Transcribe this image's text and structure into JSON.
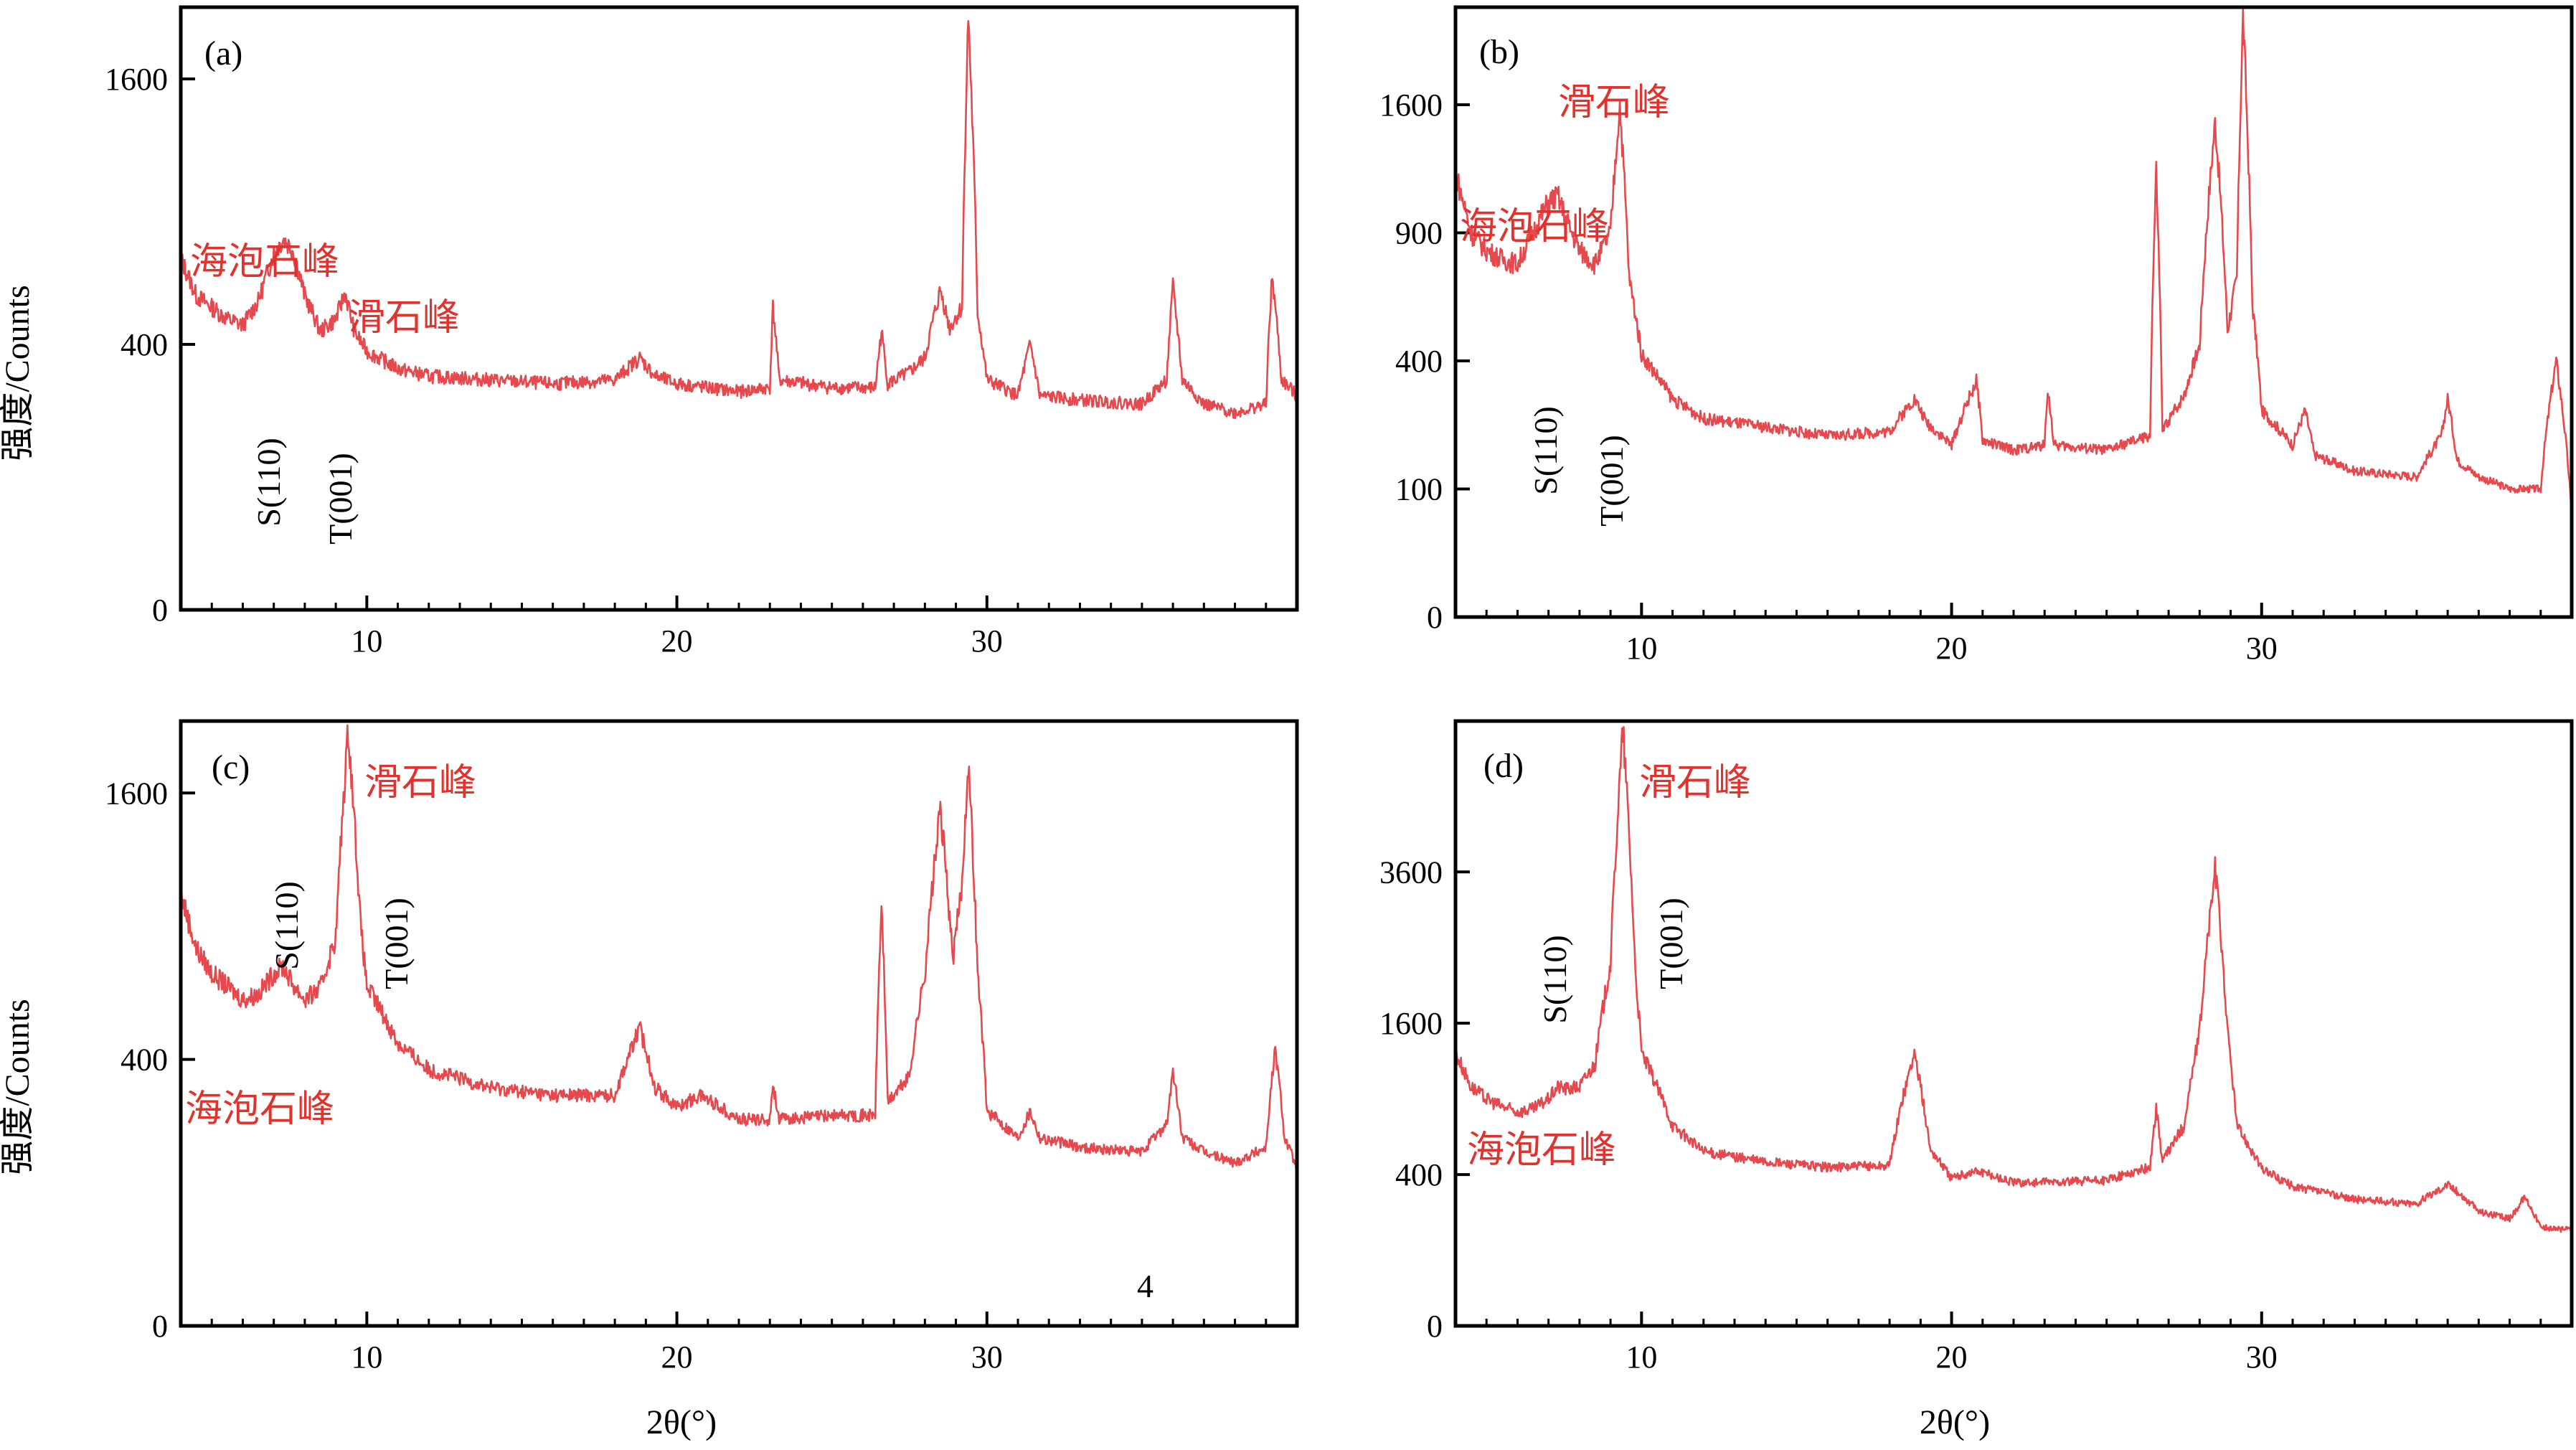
{
  "figure": {
    "ylabel": "强度/Counts",
    "xlabel": "2θ(°)",
    "colors": {
      "trace": "#e5484d",
      "annotation": "#e0322e",
      "axis": "#000000"
    }
  },
  "chart_data": [
    {
      "id": "a",
      "type": "line",
      "panel_label": "(a)",
      "xlim": [
        4,
        40
      ],
      "ylim": [
        0,
        2000
      ],
      "x_ticks": [
        10,
        20,
        30
      ],
      "y_ticks": [
        0,
        400,
        1600
      ],
      "series": [
        {
          "points": [
            [
              4,
              700
            ],
            [
              4.5,
              560
            ],
            [
              5,
              520
            ],
            [
              5.5,
              480
            ],
            [
              6,
              460
            ],
            [
              6.5,
              540
            ],
            [
              7,
              720
            ],
            [
              7.3,
              780
            ],
            [
              7.6,
              740
            ],
            [
              8,
              560
            ],
            [
              8.5,
              440
            ],
            [
              9,
              480
            ],
            [
              9.3,
              570
            ],
            [
              9.6,
              440
            ],
            [
              10,
              380
            ],
            [
              11,
              330
            ],
            [
              12,
              310
            ],
            [
              14,
              300
            ],
            [
              16,
              290
            ],
            [
              18,
              300
            ],
            [
              18.8,
              360
            ],
            [
              19.3,
              310
            ],
            [
              20,
              290
            ],
            [
              22,
              270
            ],
            [
              23,
              280
            ],
            [
              23.1,
              520
            ],
            [
              23.3,
              300
            ],
            [
              25,
              280
            ],
            [
              26.4,
              280
            ],
            [
              26.6,
              440
            ],
            [
              26.8,
              290
            ],
            [
              27.5,
              320
            ],
            [
              28,
              360
            ],
            [
              28.5,
              580
            ],
            [
              28.8,
              450
            ],
            [
              29.2,
              520
            ],
            [
              29.4,
              2000
            ],
            [
              29.7,
              500
            ],
            [
              30,
              300
            ],
            [
              31,
              260
            ],
            [
              31.4,
              400
            ],
            [
              31.7,
              260
            ],
            [
              33,
              250
            ],
            [
              35,
              240
            ],
            [
              35.8,
              300
            ],
            [
              36,
              590
            ],
            [
              36.3,
              300
            ],
            [
              37,
              240
            ],
            [
              38,
              220
            ],
            [
              39,
              240
            ],
            [
              39.2,
              630
            ],
            [
              39.5,
              300
            ],
            [
              40,
              260
            ]
          ]
        }
      ],
      "annotations": {
        "sepiolite": "海泡石峰",
        "talc": "滑石峰",
        "s_peak": "S(110)",
        "t_peak": "T(001)"
      }
    },
    {
      "id": "b",
      "type": "line",
      "panel_label": "(b)",
      "xlim": [
        4,
        40
      ],
      "ylim": [
        0,
        2200
      ],
      "x_ticks": [
        10,
        20,
        30
      ],
      "y_ticks": [
        0,
        100,
        400,
        900,
        1600
      ],
      "series": [
        {
          "points": [
            [
              4,
              1200
            ],
            [
              4.5,
              900
            ],
            [
              5,
              820
            ],
            [
              5.5,
              780
            ],
            [
              6,
              760
            ],
            [
              6.5,
              900
            ],
            [
              7,
              1050
            ],
            [
              7.3,
              1080
            ],
            [
              7.6,
              950
            ],
            [
              8,
              820
            ],
            [
              8.5,
              760
            ],
            [
              9,
              900
            ],
            [
              9.3,
              1600
            ],
            [
              9.6,
              700
            ],
            [
              10,
              420
            ],
            [
              11,
              290
            ],
            [
              12,
              240
            ],
            [
              14,
              220
            ],
            [
              16,
              200
            ],
            [
              18,
              210
            ],
            [
              18.8,
              290
            ],
            [
              19.2,
              230
            ],
            [
              20,
              180
            ],
            [
              20.8,
              340
            ],
            [
              21,
              190
            ],
            [
              22,
              170
            ],
            [
              23,
              180
            ],
            [
              23.1,
              320
            ],
            [
              23.3,
              180
            ],
            [
              25,
              170
            ],
            [
              26.4,
              200
            ],
            [
              26.6,
              1200
            ],
            [
              26.8,
              210
            ],
            [
              27.5,
              300
            ],
            [
              28,
              450
            ],
            [
              28.5,
              1500
            ],
            [
              28.9,
              500
            ],
            [
              29.2,
              700
            ],
            [
              29.4,
              2200
            ],
            [
              29.7,
              600
            ],
            [
              30,
              260
            ],
            [
              31,
              180
            ],
            [
              31.4,
              260
            ],
            [
              31.7,
              160
            ],
            [
              33,
              130
            ],
            [
              35,
              120
            ],
            [
              35.8,
              200
            ],
            [
              36,
              290
            ],
            [
              36.3,
              150
            ],
            [
              37,
              120
            ],
            [
              38,
              100
            ],
            [
              39,
              100
            ],
            [
              39.5,
              400
            ],
            [
              40,
              60
            ]
          ]
        }
      ],
      "annotations": {
        "sepiolite": "海泡石峰",
        "talc": "滑石峰",
        "s_peak": "S(110)",
        "t_peak": "T(001)"
      }
    },
    {
      "id": "c",
      "type": "line",
      "panel_label": "(c)",
      "xlim": [
        4,
        40
      ],
      "ylim": [
        0,
        2000
      ],
      "x_ticks": [
        10,
        20,
        30
      ],
      "y_ticks": [
        0,
        400,
        1600
      ],
      "series": [
        {
          "points": [
            [
              4,
              1050
            ],
            [
              4.5,
              800
            ],
            [
              5,
              700
            ],
            [
              5.5,
              650
            ],
            [
              6,
              600
            ],
            [
              6.5,
              620
            ],
            [
              7,
              700
            ],
            [
              7.3,
              730
            ],
            [
              7.6,
              660
            ],
            [
              8,
              600
            ],
            [
              8.5,
              640
            ],
            [
              9,
              850
            ],
            [
              9.4,
              2000
            ],
            [
              9.8,
              900
            ],
            [
              10,
              650
            ],
            [
              11,
              450
            ],
            [
              12,
              370
            ],
            [
              14,
              320
            ],
            [
              16,
              300
            ],
            [
              18,
              300
            ],
            [
              18.8,
              500
            ],
            [
              19.3,
              320
            ],
            [
              20,
              270
            ],
            [
              20.8,
              300
            ],
            [
              22,
              240
            ],
            [
              23,
              240
            ],
            [
              23.1,
              330
            ],
            [
              23.3,
              240
            ],
            [
              25,
              250
            ],
            [
              26.4,
              250
            ],
            [
              26.6,
              1000
            ],
            [
              26.8,
              280
            ],
            [
              27.5,
              350
            ],
            [
              28,
              700
            ],
            [
              28.5,
              1500
            ],
            [
              28.9,
              750
            ],
            [
              29.2,
              1100
            ],
            [
              29.4,
              1800
            ],
            [
              29.7,
              700
            ],
            [
              30,
              260
            ],
            [
              31,
              200
            ],
            [
              31.4,
              260
            ],
            [
              31.7,
              200
            ],
            [
              33,
              180
            ],
            [
              35,
              170
            ],
            [
              35.8,
              230
            ],
            [
              36,
              360
            ],
            [
              36.3,
              200
            ],
            [
              37,
              170
            ],
            [
              38,
              150
            ],
            [
              39,
              180
            ],
            [
              39.3,
              430
            ],
            [
              39.6,
              200
            ],
            [
              40,
              140
            ]
          ]
        }
      ],
      "annotations": {
        "sepiolite": "海泡石峰",
        "talc": "滑石峰",
        "s_peak": "S(110)",
        "t_peak": "T(001)",
        "stray": "4"
      }
    },
    {
      "id": "d",
      "type": "line",
      "panel_label": "(d)",
      "xlim": [
        4,
        40
      ],
      "ylim": [
        0,
        6200
      ],
      "x_ticks": [
        10,
        20,
        30
      ],
      "y_ticks": [
        0,
        400,
        1600,
        3600
      ],
      "series": [
        {
          "points": [
            [
              4,
              1300
            ],
            [
              4.5,
              1000
            ],
            [
              5,
              900
            ],
            [
              5.5,
              840
            ],
            [
              6,
              800
            ],
            [
              6.5,
              820
            ],
            [
              7,
              900
            ],
            [
              7.3,
              1000
            ],
            [
              7.6,
              980
            ],
            [
              8,
              1000
            ],
            [
              8.5,
              1200
            ],
            [
              9,
              2300
            ],
            [
              9.4,
              6200
            ],
            [
              9.8,
              2200
            ],
            [
              10,
              1300
            ],
            [
              11,
              700
            ],
            [
              12,
              530
            ],
            [
              14,
              470
            ],
            [
              16,
              440
            ],
            [
              18,
              450
            ],
            [
              18.8,
              1300
            ],
            [
              19.3,
              550
            ],
            [
              20,
              380
            ],
            [
              20.8,
              420
            ],
            [
              22,
              360
            ],
            [
              23,
              360
            ],
            [
              25,
              370
            ],
            [
              26.4,
              440
            ],
            [
              26.6,
              820
            ],
            [
              26.8,
              470
            ],
            [
              27.5,
              700
            ],
            [
              28,
              1500
            ],
            [
              28.5,
              3650
            ],
            [
              28.9,
              1500
            ],
            [
              29.2,
              700
            ],
            [
              30,
              430
            ],
            [
              31,
              340
            ],
            [
              33,
              280
            ],
            [
              35,
              260
            ],
            [
              36,
              350
            ],
            [
              37,
              230
            ],
            [
              38,
              200
            ],
            [
              38.5,
              290
            ],
            [
              39,
              170
            ],
            [
              40,
              160
            ]
          ]
        }
      ],
      "annotations": {
        "sepiolite": "海泡石峰",
        "talc": "滑石峰",
        "s_peak": "S(110)",
        "t_peak": "T(001)"
      }
    }
  ]
}
